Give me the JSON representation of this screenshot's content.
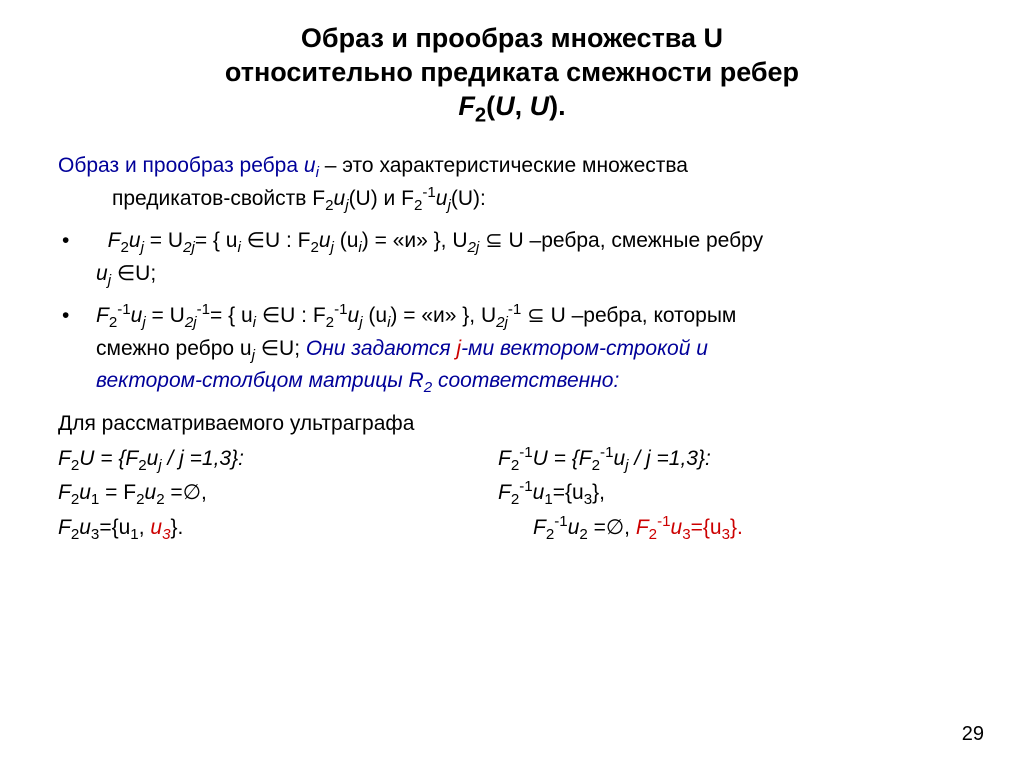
{
  "title_line1": "Образ и прообраз множества U",
  "title_line2": "относительно предиката смежности ребер",
  "title_f": "F",
  "title_sub2": "2",
  "title_paren": "(U, U).",
  "intro_lead": "Образ и прообраз ребра ",
  "intro_u": "u",
  "intro_i_sub": "i",
  "intro_dash": " – ",
  "intro_rest1": "это характеристические множества",
  "intro_rest2_a": "предикатов-свойств F",
  "intro_rest2_b": "u",
  "intro_rest2_c": "(U) и F",
  "intro_rest2_d": "u",
  "intro_rest2_e": "(U):",
  "b1_a": "F",
  "b1_b": "u",
  "b1_c": " = U",
  "b1_d": "= { u",
  "b1_e": " ∈U : F",
  "b1_f": "u",
  "b1_g": " (u",
  "b1_h": ") = «и» }, U",
  "b1_i": " ⊆ U –ребра, смежные ребру",
  "b1_line2_a": "u",
  "b1_line2_b": " ∈U;",
  "b2_a": "F",
  "b2_b": "u",
  "b2_c": " = U",
  "b2_d": "= { u",
  "b2_e": " ∈U : F",
  "b2_f": "u",
  "b2_g": " (u",
  "b2_h": ") = «и» }, U",
  "b2_i": " ⊆ U –ребра, которым",
  "b2_line2_a": "смежно ребро u",
  "b2_line2_b": " ∈U; ",
  "b2_blue1": "Они задаются ",
  "b2_red": "j",
  "b2_blue2": "-ми вектором-строкой и",
  "b2_blue3": "вектором-столбцом матрицы R",
  "b2_blue4": " соответственно:",
  "p_ultra": "Для рассматриваемого ультраграфа",
  "row1_l_a": "F",
  "row1_l_b": "U = {F",
  "row1_l_c": "u",
  "row1_l_d": " / j =1,3}:",
  "row1_r_a": "F",
  "row1_r_b": "U = {F",
  "row1_r_c": "u",
  "row1_r_d": " / j =1,3}:",
  "row2_l_a": "F",
  "row2_l_b": "u",
  "row2_l_c": " = F",
  "row2_l_d": "u",
  "row2_l_e": " =∅,",
  "row2_r_a": "F",
  "row2_r_b": "u",
  "row2_r_c": "={u",
  "row2_r_d": "},",
  "row3_l_a": "F",
  "row3_l_b": "u",
  "row3_l_c": "={u",
  "row3_l_d": ", ",
  "row3_red": "u",
  "row3_l_e": "}.",
  "row3_r_a": "F",
  "row3_r_b": "u",
  "row3_r_c": " =∅, ",
  "row3_r_red_a": "F",
  "row3_r_red_b": "u",
  "row3_r_red_c": "={u",
  "row3_r_red_d": "}.",
  "sub_2": "2",
  "sub_j": "j",
  "sub_i": "i",
  "sub_2j": "2j",
  "sub_1": "1",
  "sub_3": "3",
  "sup_m1": "-1",
  "sub_2jm1": "2j",
  "pagenum": "29"
}
